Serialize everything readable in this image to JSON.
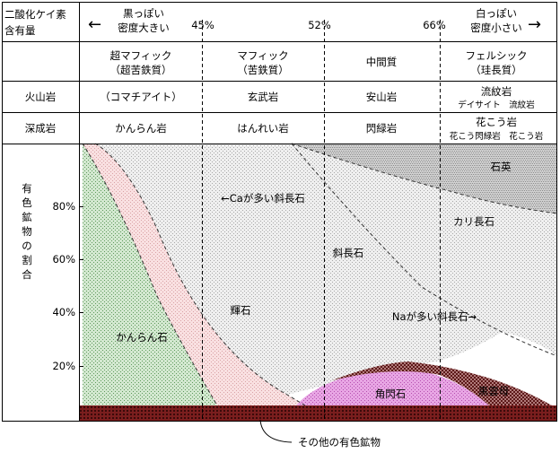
{
  "header": {
    "corner_line1": "二酸化ケイ素",
    "corner_line2": "含有量",
    "dark_line1": "黒っぽい",
    "dark_line2": "密度大きい",
    "light_line1": "白っぽい",
    "light_line2": "密度小さい",
    "left_arrow": "←",
    "right_arrow": "→"
  },
  "silica_ticks": [
    "45%",
    "52%",
    "66%"
  ],
  "columns": [
    {
      "line1": "超マフィック",
      "line2": "（超苦鉄質）"
    },
    {
      "line1": "マフィック",
      "line2": "（苦鉄質）"
    },
    {
      "line1": "中間質",
      "line2": ""
    },
    {
      "line1": "フェルシック",
      "line2": "（珪長質）"
    }
  ],
  "volcanic": {
    "label": "火山岩",
    "cells": [
      {
        "main": "（コマチアイト）",
        "sub": ""
      },
      {
        "main": "玄武岩",
        "sub": ""
      },
      {
        "main": "安山岩",
        "sub": ""
      },
      {
        "main": "流紋岩",
        "sub": "デイサイト　流紋岩"
      }
    ]
  },
  "plutonic": {
    "label": "深成岩",
    "cells": [
      {
        "main": "かんらん岩",
        "sub": ""
      },
      {
        "main": "はんれい岩",
        "sub": ""
      },
      {
        "main": "閃緑岩",
        "sub": ""
      },
      {
        "main": "花こう岩",
        "sub": "花こう閃緑岩　花こう岩"
      }
    ]
  },
  "chart_data": {
    "type": "area",
    "ylabel": "有色鉱物の割合",
    "y_ticks": [
      "80%",
      "60%",
      "40%",
      "20%"
    ],
    "regions": {
      "olivine": "かんらん石",
      "pyroxene": "輝石",
      "ca_plagioclase": "←Caが多い斜長石",
      "plagioclase": "斜長石",
      "na_plagioclase": "Naが多い斜長石→",
      "k_feldspar": "カリ長石",
      "quartz": "石英",
      "amphibole": "角閃石",
      "biotite": "黒雲母"
    },
    "other_label": "その他の有色鉱物"
  },
  "colors": {
    "olivine": "#cfe6cc",
    "pyroxene": "#f6d6d8",
    "plagioclase": "#ececec",
    "quartz": "#c9c9c9",
    "amphibole": "#e59be0",
    "biotite": "#a46b6b",
    "other": "#6e1a1a"
  }
}
